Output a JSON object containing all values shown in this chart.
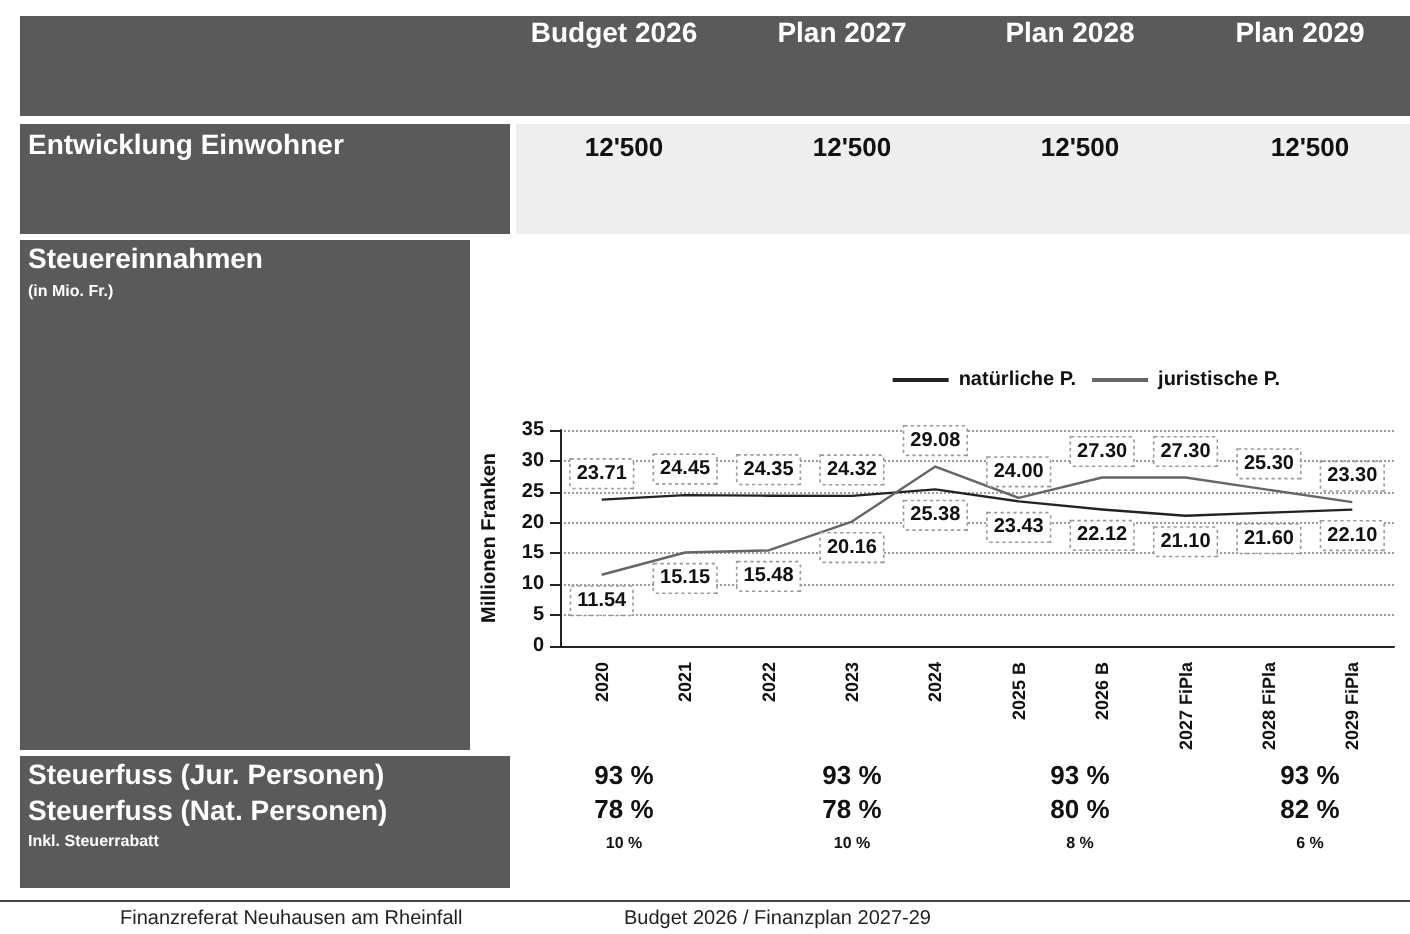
{
  "chart_data": {
    "type": "line",
    "categories": [
      "2020",
      "2021",
      "2022",
      "2023",
      "2024",
      "2025 B",
      "2026 B",
      "2027 FiPla",
      "2028 FiPla",
      "2029 FiPla"
    ],
    "series": [
      {
        "name": "natürliche P.",
        "color": "#222222",
        "values": [
          23.71,
          24.45,
          24.35,
          24.32,
          25.38,
          23.43,
          22.12,
          21.1,
          21.6,
          22.1
        ],
        "value_labels": [
          "23.71",
          "24.45",
          "24.35",
          "24.32",
          "25.38",
          "23.43",
          "22.12",
          "21.10",
          "21.60",
          "22.10"
        ]
      },
      {
        "name": "juristische P.",
        "color": "#666666",
        "line_style": "solid",
        "values": [
          11.54,
          15.15,
          15.48,
          20.16,
          29.08,
          24.0,
          27.3,
          27.3,
          25.3,
          23.3
        ],
        "value_labels": [
          "11.54",
          "15.15",
          "15.48",
          "20.16",
          "29.08",
          "24.00",
          "27.30",
          "27.30",
          "25.30",
          "23.30"
        ]
      }
    ],
    "ylabel": "Millionen Franken",
    "ylim": [
      0,
      35
    ],
    "yticks": [
      0,
      5,
      10,
      15,
      20,
      25,
      30,
      35
    ],
    "grid": "y",
    "legend": "top",
    "marker": "none",
    "annotations": [
      "Budget 2026",
      "Plan 2027",
      "Plan 2028",
      "Plan 2029",
      "Entwicklung Einwohner",
      "12'500",
      "12'500",
      "12'500",
      "12'500",
      "Steuereinnahmen",
      "(in Mio. Fr.)",
      "Steuerfuss (Jur. Personen)",
      "93 %",
      "93 %",
      "93 %",
      "93 %",
      "Steuerfuss (Nat. Personen)",
      "78 %",
      "78 %",
      "80 %",
      "82 %",
      "Inkl. Steuerrabatt",
      "10 %",
      "10 %",
      "8 %",
      "6 %",
      "Finanzreferat Neuhausen am Rheinfall",
      "Budget 2026 / Finanzplan 2027-29"
    ]
  }
}
